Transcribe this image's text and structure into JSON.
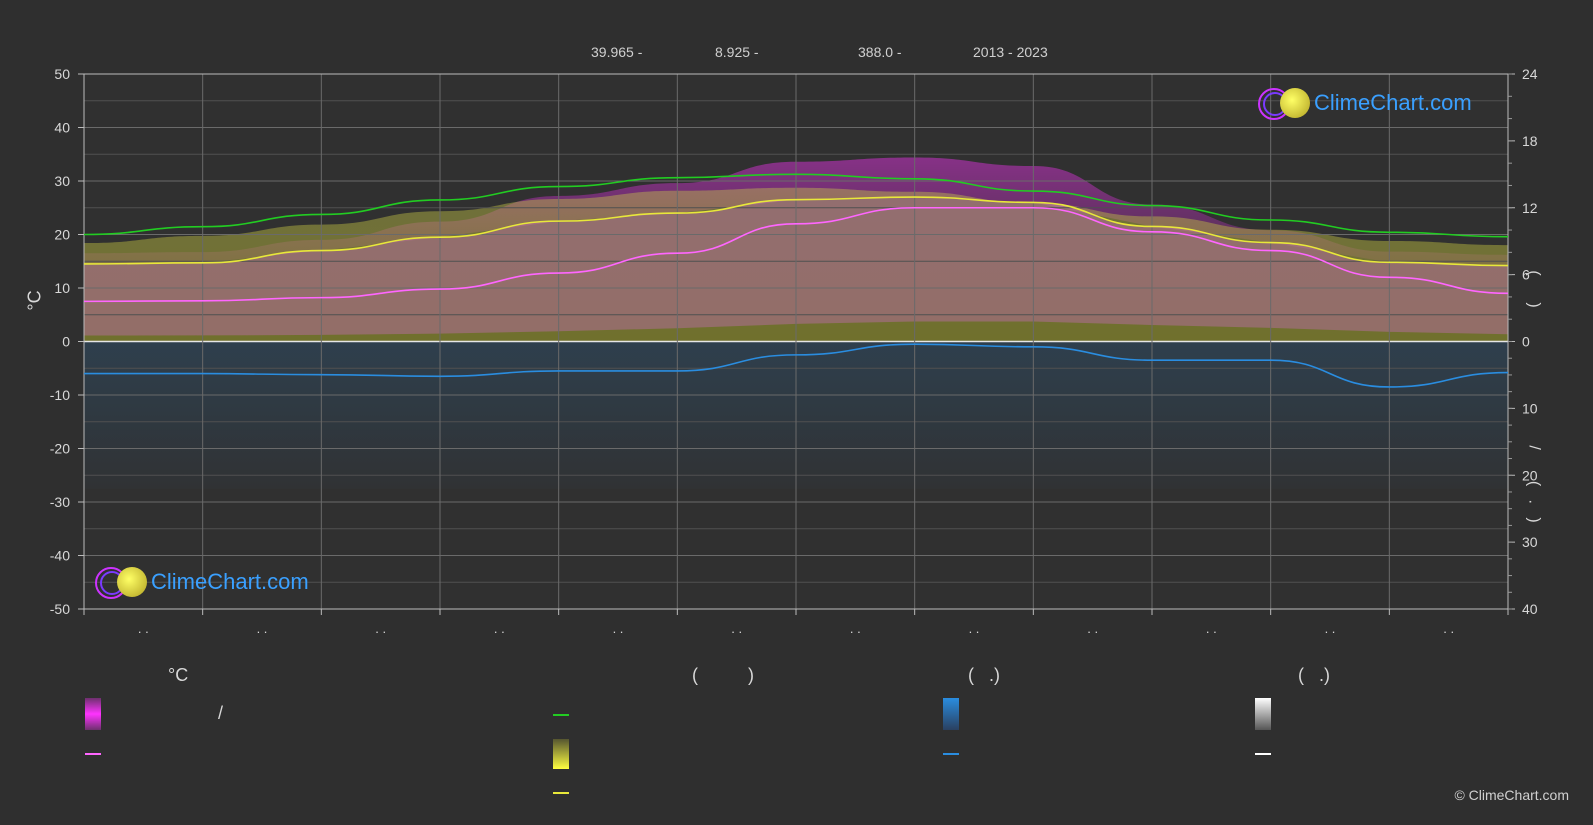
{
  "header": {
    "lat": "39.965 -",
    "lon": "8.925 -",
    "elev": "388.0 -",
    "years": "2013 - 2023"
  },
  "axis_left_label": "°C",
  "axis_right_label_top": "(      )",
  "axis_right_label_bottom": "/       (   .   )",
  "x_tick_labels": [
    ". .",
    ". .",
    ". .",
    ". .",
    ". .",
    ". .",
    ". .",
    ". .",
    ". .",
    ". .",
    ". .",
    ". ."
  ],
  "legend": {
    "col1_title": "°C",
    "col2_title": "(          )",
    "col3_title": "(   .)",
    "col4_title": "(   .)",
    "slash": "/"
  },
  "brand": "ClimeChart.com",
  "copyright": "© ClimeChart.com",
  "colors": {
    "background": "#2f2f2f",
    "daylight": "#22cc22",
    "sunshine": "#e8e83a",
    "max_temp": "#ff66ff",
    "precip": "#2a8de0",
    "brand": "#3aa0ff"
  },
  "chart_data": {
    "type": "line",
    "y_left": {
      "label": "°C",
      "lim": [
        -50,
        50
      ],
      "ticks": [
        50,
        40,
        30,
        20,
        10,
        0,
        -10,
        -20,
        -30,
        -40,
        -50
      ]
    },
    "y_right_top": {
      "lim": [
        0,
        24
      ],
      "ticks": [
        24,
        18,
        12,
        6,
        0
      ]
    },
    "y_right_bottom": {
      "lim": [
        0,
        40
      ],
      "ticks": [
        0,
        10,
        20,
        30,
        40
      ]
    },
    "x": [
      0,
      1,
      2,
      3,
      4,
      5,
      6,
      7,
      8,
      9,
      10,
      11,
      12
    ],
    "series": [
      {
        "key": "daylight",
        "axis": "hours",
        "values": [
          9.6,
          10.3,
          11.4,
          12.7,
          13.9,
          14.7,
          15.0,
          14.6,
          13.5,
          12.2,
          10.9,
          9.8,
          9.4
        ]
      },
      {
        "key": "sunshine",
        "axis": "celsius",
        "values": [
          14.5,
          14.7,
          17.0,
          19.5,
          22.5,
          24.0,
          26.5,
          27.0,
          26.0,
          21.5,
          18.5,
          14.8,
          14.2
        ]
      },
      {
        "key": "max_temp",
        "axis": "celsius",
        "values": [
          7.5,
          7.6,
          8.2,
          9.8,
          12.8,
          16.5,
          22.0,
          25.0,
          25.0,
          20.5,
          17.0,
          12.0,
          9.0
        ]
      },
      {
        "key": "precip",
        "axis": "celsius",
        "values": [
          -6.0,
          -6.0,
          -6.2,
          -6.5,
          -5.5,
          -5.5,
          -2.5,
          -0.5,
          -1.0,
          -3.5,
          -3.5,
          -8.5,
          -5.8
        ]
      }
    ],
    "x_ticks_count": 12,
    "grid": true,
    "legend_position": "bottom"
  }
}
